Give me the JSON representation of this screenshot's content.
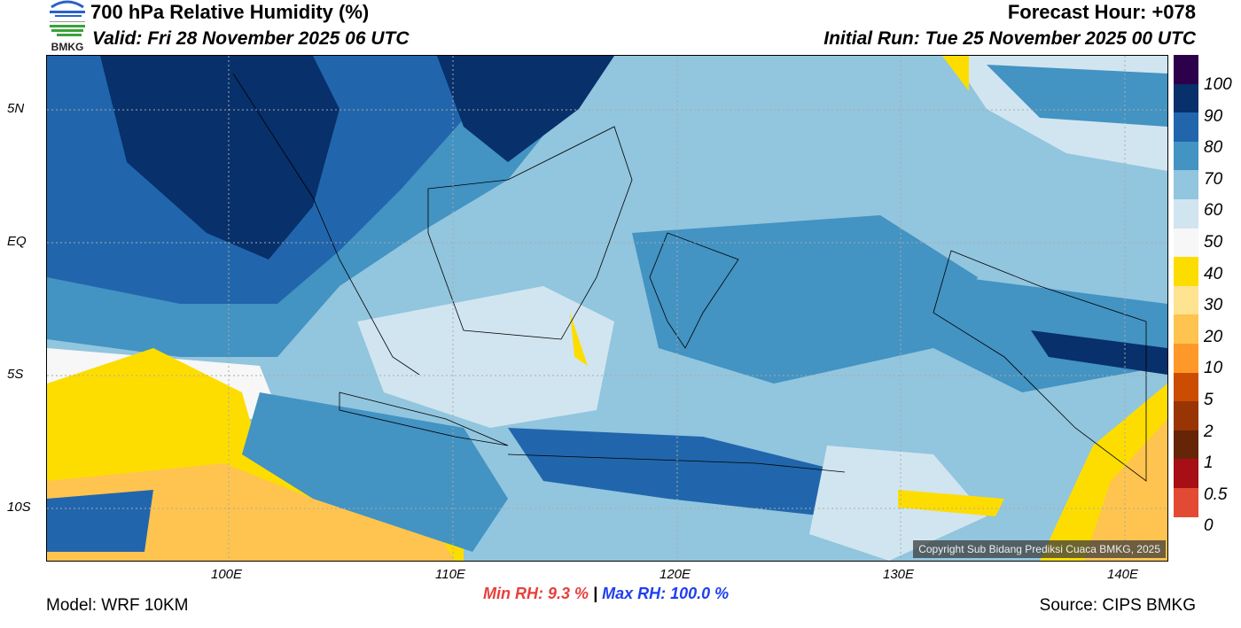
{
  "header": {
    "title": "700 hPa Relative Humidity (%)",
    "valid": "Valid: Fri 28 November 2025 06 UTC",
    "forecast_hour": "Forecast Hour: +078",
    "initial_run": "Initial Run: Tue 25 November 2025 00 UTC",
    "logo_text": "BMKG"
  },
  "axes": {
    "lat_labels": [
      "5N",
      "EQ",
      "5S",
      "10S"
    ],
    "lon_labels": [
      "100E",
      "110E",
      "120E",
      "130E",
      "140E"
    ]
  },
  "colorbar": {
    "labels": [
      "100",
      "90",
      "80",
      "70",
      "60",
      "50",
      "40",
      "30",
      "20",
      "10",
      "5",
      "2",
      "1",
      "0.5",
      "0"
    ],
    "colors": [
      "#2d004b",
      "#08306b",
      "#2166ac",
      "#4393c3",
      "#92c5de",
      "#d1e5f0",
      "#f7f7f7",
      "#fddd00",
      "#fee391",
      "#fec44f",
      "#fe9929",
      "#cc4c02",
      "#993404",
      "#662506",
      "#a50f15",
      "#e34a33"
    ]
  },
  "footer": {
    "model": "Model: WRF 10KM",
    "source": "Source: CIPS BMKG",
    "min_label": "Min RH:",
    "min_value": "9.3 %",
    "sep": "|",
    "max_label": "Max RH:",
    "max_value": "100.0 %",
    "copyright": "Copyright Sub Bidang Prediksi Cuaca BMKG, 2025"
  },
  "colors": {
    "min": "#e8403c",
    "max": "#1f3ff0"
  }
}
